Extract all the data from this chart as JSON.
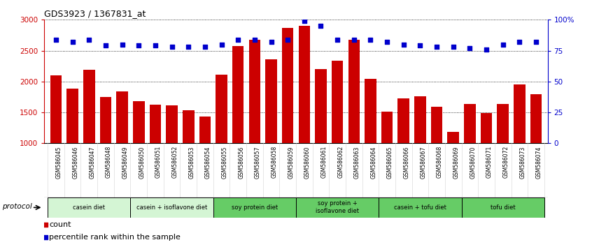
{
  "title": "GDS3923 / 1367831_at",
  "samples": [
    "GSM586045",
    "GSM586046",
    "GSM586047",
    "GSM586048",
    "GSM586049",
    "GSM586050",
    "GSM586051",
    "GSM586052",
    "GSM586053",
    "GSM586054",
    "GSM586055",
    "GSM586056",
    "GSM586057",
    "GSM586058",
    "GSM586059",
    "GSM586060",
    "GSM586061",
    "GSM586062",
    "GSM586063",
    "GSM586064",
    "GSM586065",
    "GSM586066",
    "GSM586067",
    "GSM586068",
    "GSM586069",
    "GSM586070",
    "GSM586071",
    "GSM586072",
    "GSM586073",
    "GSM586074"
  ],
  "counts": [
    2100,
    1880,
    2190,
    1750,
    1840,
    1680,
    1620,
    1610,
    1540,
    1430,
    2110,
    2570,
    2680,
    2360,
    2870,
    2900,
    2200,
    2340,
    2680,
    2040,
    1510,
    1730,
    1760,
    1590,
    1180,
    1640,
    1490,
    1640,
    1950,
    1800
  ],
  "percentile_ranks": [
    84,
    82,
    84,
    79,
    80,
    79,
    79,
    78,
    78,
    78,
    80,
    84,
    84,
    82,
    84,
    99,
    95,
    84,
    84,
    84,
    82,
    80,
    79,
    78,
    78,
    77,
    76,
    80,
    82,
    82
  ],
  "bar_color": "#cc0000",
  "dot_color": "#0000cc",
  "ylim_left": [
    1000,
    3000
  ],
  "ylim_right": [
    0,
    100
  ],
  "yticks_left": [
    1000,
    1500,
    2000,
    2500,
    3000
  ],
  "yticks_right": [
    0,
    25,
    50,
    75,
    100
  ],
  "ytick_labels_right": [
    "0",
    "25",
    "50",
    "75",
    "100%"
  ],
  "groups": [
    {
      "label": "casein diet",
      "start": 0,
      "end": 4,
      "color": "#d4f5d4"
    },
    {
      "label": "casein + isoflavone diet",
      "start": 5,
      "end": 9,
      "color": "#d4f5d4"
    },
    {
      "label": "soy protein diet",
      "start": 10,
      "end": 14,
      "color": "#66cc66"
    },
    {
      "label": "soy protein +\nisoflavone diet",
      "start": 15,
      "end": 19,
      "color": "#66cc66"
    },
    {
      "label": "casein + tofu diet",
      "start": 20,
      "end": 24,
      "color": "#66cc66"
    },
    {
      "label": "tofu diet",
      "start": 25,
      "end": 29,
      "color": "#66cc66"
    }
  ],
  "legend_count_label": "count",
  "legend_pct_label": "percentile rank within the sample",
  "protocol_label": "protocol"
}
